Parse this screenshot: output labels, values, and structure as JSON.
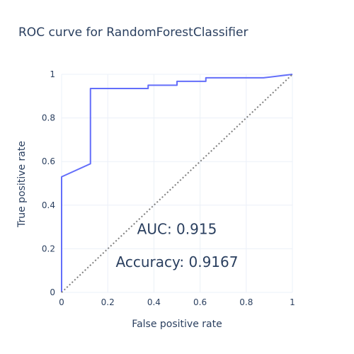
{
  "chart_data": {
    "type": "line",
    "title": "ROC curve for RandomForestClassifier",
    "xlabel": "False positive rate",
    "ylabel": "True positive rate",
    "xlim": [
      0,
      1
    ],
    "ylim": [
      0,
      1
    ],
    "x_ticks": [
      "0",
      "0.2",
      "0.4",
      "0.6",
      "0.8",
      "1"
    ],
    "y_ticks": [
      "0",
      "0.2",
      "0.4",
      "0.6",
      "0.8",
      "1"
    ],
    "grid": true,
    "legend": "none",
    "series": [
      {
        "color": "#636efa",
        "style": "solid",
        "points": [
          [
            0,
            0
          ],
          [
            0,
            0.53
          ],
          [
            0.125,
            0.59
          ],
          [
            0.125,
            0.935
          ],
          [
            0.375,
            0.935
          ],
          [
            0.375,
            0.95
          ],
          [
            0.5,
            0.95
          ],
          [
            0.5,
            0.968
          ],
          [
            0.625,
            0.968
          ],
          [
            0.625,
            0.984
          ],
          [
            0.875,
            0.984
          ],
          [
            1,
            1
          ]
        ]
      },
      {
        "color": "#7f7f7f",
        "style": "dotted",
        "points": [
          [
            0,
            0
          ],
          [
            1,
            1
          ]
        ]
      }
    ],
    "annotations": [
      {
        "id": "auc",
        "text": "AUC: 0.915",
        "x": 0.5,
        "y": 0.29
      },
      {
        "id": "accuracy",
        "text": "Accuracy: 0.9167",
        "x": 0.5,
        "y": 0.14
      }
    ]
  }
}
